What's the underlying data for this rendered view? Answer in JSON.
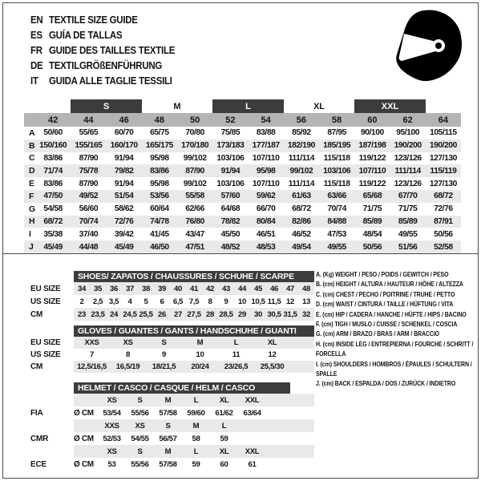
{
  "colors": {
    "dark_bar": "#3c3c3c",
    "size_header_bg": "#b4b4b4",
    "row_shade": "#e9e9e9",
    "border": "#4a4a4a",
    "bar_text": "#ffffff"
  },
  "header": {
    "languages": [
      {
        "code": "EN",
        "title": "TEXTILE SIZE GUIDE"
      },
      {
        "code": "ES",
        "title": "GUÍA DE TALLAS"
      },
      {
        "code": "FR",
        "title": "GUIDE DES TAILLES TEXTILE"
      },
      {
        "code": "DE",
        "title": "TEXTILGRÖßENFÜHRUNG"
      },
      {
        "code": "IT",
        "title": "GUIDA ALLE TAGLIE TESSILI"
      }
    ],
    "logo_icon": "full-face-helmet-icon"
  },
  "textile_table": {
    "size_groups": [
      {
        "label": "S",
        "col": 1,
        "span": 2,
        "dark": true
      },
      {
        "label": "M",
        "col": 3,
        "span": 2,
        "dark": false
      },
      {
        "label": "L",
        "col": 5,
        "span": 2,
        "dark": true
      },
      {
        "label": "XL",
        "col": 7,
        "span": 2,
        "dark": false
      },
      {
        "label": "XXL",
        "col": 9,
        "span": 2,
        "dark": true
      }
    ],
    "columns": [
      "42",
      "44",
      "46",
      "48",
      "50",
      "52",
      "54",
      "56",
      "58",
      "60",
      "62",
      "64"
    ],
    "rows": [
      {
        "letter": "A",
        "values": [
          "50/60",
          "55/65",
          "60/70",
          "65/75",
          "70/80",
          "75/85",
          "83/88",
          "85/92",
          "87/95",
          "90/100",
          "95/100",
          "105/115"
        ]
      },
      {
        "letter": "B",
        "values": [
          "150/160",
          "155/165",
          "160/170",
          "165/175",
          "170/180",
          "173/183",
          "177/187",
          "182/190",
          "185/195",
          "187/198",
          "190/200",
          "190/200"
        ]
      },
      {
        "letter": "C",
        "values": [
          "83/86",
          "87/90",
          "91/94",
          "95/98",
          "99/102",
          "103/106",
          "107/110",
          "111/114",
          "115/118",
          "119/122",
          "123/126",
          "127/130"
        ]
      },
      {
        "letter": "D",
        "values": [
          "71/74",
          "75/78",
          "79/82",
          "83/86",
          "87/90",
          "91/94",
          "95/98",
          "99/102",
          "103/106",
          "107/110",
          "111/114",
          "115/119"
        ]
      },
      {
        "letter": "E",
        "values": [
          "83/86",
          "87/90",
          "91/94",
          "95/98",
          "99/102",
          "103/106",
          "107/110",
          "111/114",
          "115/118",
          "119/122",
          "123/126",
          "127/130"
        ]
      },
      {
        "letter": "F",
        "values": [
          "47/50",
          "49/52",
          "51/54",
          "53/56",
          "55/58",
          "57/60",
          "59/62",
          "61/63",
          "63/66",
          "65/68",
          "67/70",
          "68/72"
        ]
      },
      {
        "letter": "G",
        "values": [
          "54/58",
          "56/60",
          "58/62",
          "60/64",
          "62/66",
          "64/68",
          "66/70",
          "68/72",
          "70/74",
          "71/75",
          "71/75",
          "72/76"
        ]
      },
      {
        "letter": "H",
        "values": [
          "68/72",
          "70/74",
          "72/76",
          "74/78",
          "76/80",
          "78/82",
          "80/84",
          "82/86",
          "84/88",
          "85/89",
          "85/89",
          "87/91"
        ]
      },
      {
        "letter": "I",
        "values": [
          "35/38",
          "37/40",
          "39/42",
          "41/45",
          "43/47",
          "45/50",
          "46/51",
          "46/52",
          "47/53",
          "48/54",
          "49/55",
          "50/56"
        ]
      },
      {
        "letter": "J",
        "values": [
          "45/49",
          "44/48",
          "45/49",
          "46/50",
          "47/51",
          "48/52",
          "48/53",
          "49/54",
          "49/55",
          "50/56",
          "51/56",
          "52/58"
        ]
      }
    ]
  },
  "shoes_table": {
    "title": "SHOES/ ZAPATOS / CHAUSSURES / SCHUHE / SCARPE",
    "rows": [
      {
        "label": "EU SIZE",
        "shaded": true,
        "values": [
          "34",
          "35",
          "36",
          "37",
          "38",
          "39",
          "40",
          "41",
          "42",
          "43",
          "44",
          "45",
          "46",
          "47",
          "48"
        ]
      },
      {
        "label": "US SIZE",
        "shaded": false,
        "values": [
          "2",
          "2,5",
          "3,5",
          "4",
          "5",
          "6",
          "6,5",
          "7,5",
          "8",
          "9",
          "10",
          "10,5",
          "11,5",
          "12",
          "13"
        ]
      },
      {
        "label": "CM",
        "shaded": true,
        "values": [
          "23",
          "23,5",
          "24",
          "24,5",
          "25,5",
          "26",
          "27",
          "27,5",
          "28",
          "28,5",
          "29",
          "30",
          "30,5",
          "31,5",
          "32"
        ]
      }
    ]
  },
  "gloves_table": {
    "title": "GLOVES / GUANTES / GANTS / HANDSCHUHE / GUANTI",
    "rows": [
      {
        "label": "EU SIZE",
        "shaded": true,
        "values": [
          "XXS",
          "XS",
          "S",
          "M",
          "L",
          "XL"
        ]
      },
      {
        "label": "US SIZE",
        "shaded": false,
        "values": [
          "7",
          "8",
          "9",
          "10",
          "11",
          "12"
        ]
      },
      {
        "label": "CM",
        "shaded": true,
        "values": [
          "12,5/16,5",
          "16,5/19",
          "18/21,5",
          "20/24",
          "23/26,5",
          "25,5/30"
        ]
      }
    ]
  },
  "helmet_table": {
    "title": "HELMET / CASCO / CASQUE / HELM / CASCO",
    "unit_label": "Ø CM",
    "sections": [
      {
        "org": "FIA",
        "sizes": [
          "XS",
          "S",
          "M",
          "L",
          "XL",
          "XXL"
        ],
        "values": [
          "53/54",
          "55/56",
          "57/58",
          "59/60",
          "61/62",
          "63/64"
        ]
      },
      {
        "org": "CMR",
        "sizes": [
          "XXS",
          "XS",
          "S",
          "M",
          "L",
          ""
        ],
        "values": [
          "52/53",
          "54/55",
          "56/57",
          "58",
          "59",
          ""
        ]
      },
      {
        "org": "ECE",
        "sizes": [
          "XS",
          "S",
          "M",
          "L",
          "XL",
          "XXL"
        ],
        "values": [
          "53",
          "55/56",
          "57/58",
          "59",
          "60",
          "61"
        ]
      }
    ]
  },
  "legend": {
    "items": [
      "A. (Kg) WEIGHT / PESO / POIDS / GEWITCH / PESO",
      "B. (cm) HEIGHT / ALTURA / HAUTEUR / HÖHE / ALTEZZA",
      "C. (cm) CHEST / PECHO / POITRINE / TRUHE / PETTO",
      "D. (cm) WAIST / CINTURA / TAILLE / HÜFTUNG / VITA",
      "E. (cm) HIP / CADERA / HANCHE / HÜFTE / HIPS /  BACINO",
      "F. (cm) TIGH / MUSLO / CUISSE / SCHENKEL / COSCIA",
      "G. (cm) ARM  / BRAZO / BRAS / ARM / BRACCIO",
      "H. (cm) INSIDE LEG / ENTREPIERNA / FOURCHE / SCHRITT / FORCELLA",
      "I. (cm) SHOULDERS / HOMBROS / ÉPAULES / SCHULTERN / SPALLE",
      "J. (cm) BACK / ESPALDA / DOS / ZURÜCK / INDIETRO"
    ]
  }
}
